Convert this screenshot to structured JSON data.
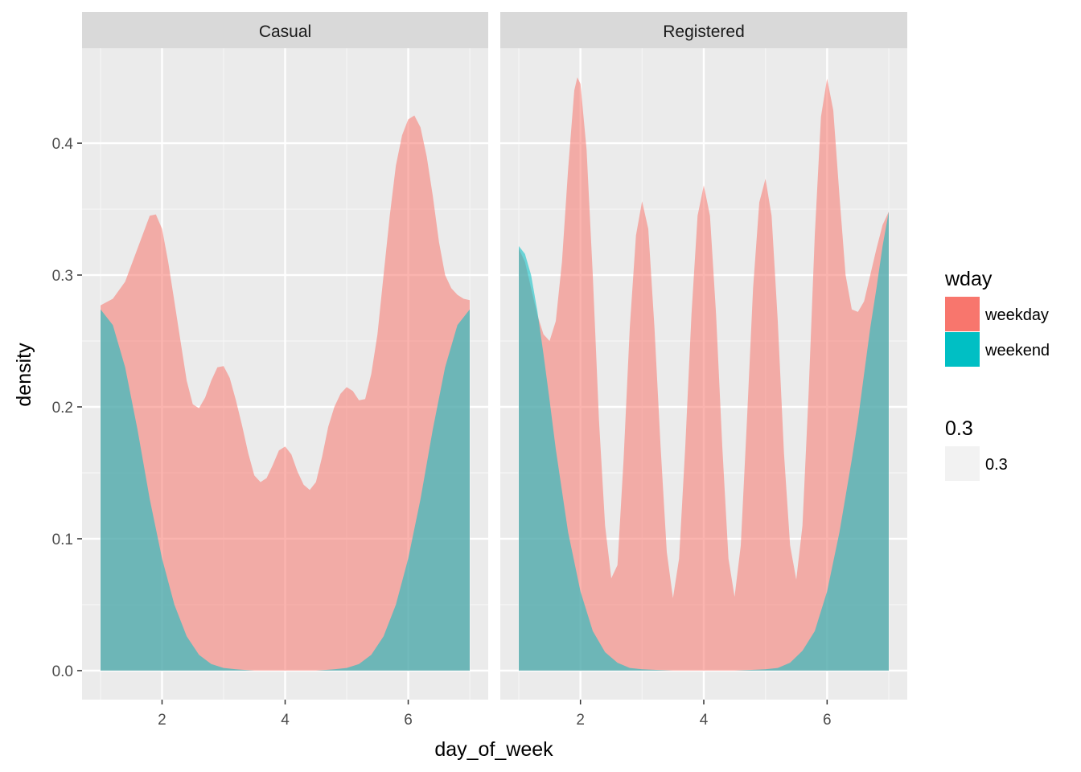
{
  "chart_data": {
    "type": "area",
    "kind": "faceted-density",
    "xlabel": "day_of_week",
    "ylabel": "density",
    "xlim": [
      0.7,
      7.3
    ],
    "ylim": [
      -0.022,
      0.472
    ],
    "x_ticks": [
      2,
      4,
      6
    ],
    "y_ticks": [
      0.0,
      0.1,
      0.2,
      0.3,
      0.4
    ],
    "y_tick_labels": [
      "0.0",
      "0.1",
      "0.2",
      "0.3",
      "0.4"
    ],
    "grid": true,
    "fill_alpha": 0.3,
    "colors": {
      "weekday": "#F8766D",
      "weekend": "#00BFC4"
    },
    "legend": {
      "position": "right",
      "groups": [
        {
          "title": "wday",
          "entries": [
            {
              "label": "weekday",
              "color": "#F8766D"
            },
            {
              "label": "weekend",
              "color": "#00BFC4"
            }
          ]
        },
        {
          "title": "0.3",
          "entries": [
            {
              "label": "0.3",
              "color": "#F2F2F2"
            }
          ]
        }
      ]
    },
    "panels": [
      {
        "strip": "Casual",
        "series": [
          {
            "name": "weekday",
            "points": [
              [
                1.0,
                0.277
              ],
              [
                1.2,
                0.282
              ],
              [
                1.4,
                0.295
              ],
              [
                1.6,
                0.32
              ],
              [
                1.8,
                0.345
              ],
              [
                1.9,
                0.346
              ],
              [
                2.0,
                0.335
              ],
              [
                2.1,
                0.31
              ],
              [
                2.2,
                0.28
              ],
              [
                2.3,
                0.25
              ],
              [
                2.4,
                0.22
              ],
              [
                2.5,
                0.202
              ],
              [
                2.6,
                0.199
              ],
              [
                2.7,
                0.207
              ],
              [
                2.8,
                0.22
              ],
              [
                2.9,
                0.23
              ],
              [
                3.0,
                0.231
              ],
              [
                3.1,
                0.222
              ],
              [
                3.2,
                0.205
              ],
              [
                3.3,
                0.186
              ],
              [
                3.4,
                0.165
              ],
              [
                3.5,
                0.148
              ],
              [
                3.6,
                0.143
              ],
              [
                3.7,
                0.146
              ],
              [
                3.8,
                0.156
              ],
              [
                3.9,
                0.167
              ],
              [
                4.0,
                0.17
              ],
              [
                4.1,
                0.164
              ],
              [
                4.2,
                0.151
              ],
              [
                4.3,
                0.141
              ],
              [
                4.4,
                0.137
              ],
              [
                4.5,
                0.143
              ],
              [
                4.6,
                0.162
              ],
              [
                4.7,
                0.185
              ],
              [
                4.8,
                0.2
              ],
              [
                4.9,
                0.21
              ],
              [
                5.0,
                0.215
              ],
              [
                5.1,
                0.212
              ],
              [
                5.2,
                0.205
              ],
              [
                5.3,
                0.206
              ],
              [
                5.4,
                0.225
              ],
              [
                5.5,
                0.255
              ],
              [
                5.6,
                0.3
              ],
              [
                5.7,
                0.345
              ],
              [
                5.8,
                0.383
              ],
              [
                5.9,
                0.406
              ],
              [
                6.0,
                0.418
              ],
              [
                6.1,
                0.421
              ],
              [
                6.2,
                0.412
              ],
              [
                6.3,
                0.39
              ],
              [
                6.4,
                0.36
              ],
              [
                6.5,
                0.325
              ],
              [
                6.6,
                0.3
              ],
              [
                6.7,
                0.29
              ],
              [
                6.8,
                0.285
              ],
              [
                6.9,
                0.282
              ],
              [
                7.0,
                0.281
              ]
            ]
          },
          {
            "name": "weekend",
            "points": [
              [
                1.0,
                0.274
              ],
              [
                1.2,
                0.262
              ],
              [
                1.4,
                0.23
              ],
              [
                1.6,
                0.183
              ],
              [
                1.8,
                0.13
              ],
              [
                2.0,
                0.085
              ],
              [
                2.2,
                0.05
              ],
              [
                2.4,
                0.026
              ],
              [
                2.6,
                0.012
              ],
              [
                2.8,
                0.005
              ],
              [
                3.0,
                0.002
              ],
              [
                3.2,
                0.001
              ],
              [
                3.5,
                0.0
              ],
              [
                4.0,
                0.0
              ],
              [
                4.5,
                0.0
              ],
              [
                4.8,
                0.001
              ],
              [
                5.0,
                0.002
              ],
              [
                5.2,
                0.005
              ],
              [
                5.4,
                0.012
              ],
              [
                5.6,
                0.026
              ],
              [
                5.8,
                0.05
              ],
              [
                6.0,
                0.085
              ],
              [
                6.2,
                0.13
              ],
              [
                6.4,
                0.183
              ],
              [
                6.6,
                0.23
              ],
              [
                6.8,
                0.262
              ],
              [
                7.0,
                0.274
              ]
            ]
          }
        ]
      },
      {
        "strip": "Registered",
        "series": [
          {
            "name": "weekday",
            "points": [
              [
                1.0,
                0.32
              ],
              [
                1.1,
                0.31
              ],
              [
                1.2,
                0.29
              ],
              [
                1.3,
                0.27
              ],
              [
                1.4,
                0.255
              ],
              [
                1.5,
                0.25
              ],
              [
                1.6,
                0.265
              ],
              [
                1.7,
                0.31
              ],
              [
                1.8,
                0.38
              ],
              [
                1.9,
                0.44
              ],
              [
                1.95,
                0.45
              ],
              [
                2.0,
                0.445
              ],
              [
                2.1,
                0.395
              ],
              [
                2.2,
                0.3
              ],
              [
                2.3,
                0.19
              ],
              [
                2.4,
                0.11
              ],
              [
                2.5,
                0.07
              ],
              [
                2.6,
                0.08
              ],
              [
                2.7,
                0.16
              ],
              [
                2.8,
                0.26
              ],
              [
                2.9,
                0.33
              ],
              [
                3.0,
                0.356
              ],
              [
                3.1,
                0.335
              ],
              [
                3.2,
                0.26
              ],
              [
                3.3,
                0.17
              ],
              [
                3.4,
                0.09
              ],
              [
                3.5,
                0.055
              ],
              [
                3.6,
                0.085
              ],
              [
                3.7,
                0.17
              ],
              [
                3.8,
                0.27
              ],
              [
                3.9,
                0.345
              ],
              [
                4.0,
                0.368
              ],
              [
                4.1,
                0.345
              ],
              [
                4.2,
                0.27
              ],
              [
                4.3,
                0.17
              ],
              [
                4.4,
                0.085
              ],
              [
                4.5,
                0.056
              ],
              [
                4.6,
                0.095
              ],
              [
                4.7,
                0.19
              ],
              [
                4.8,
                0.29
              ],
              [
                4.9,
                0.355
              ],
              [
                5.0,
                0.373
              ],
              [
                5.1,
                0.345
              ],
              [
                5.2,
                0.265
              ],
              [
                5.3,
                0.165
              ],
              [
                5.4,
                0.095
              ],
              [
                5.5,
                0.069
              ],
              [
                5.6,
                0.11
              ],
              [
                5.7,
                0.21
              ],
              [
                5.8,
                0.33
              ],
              [
                5.9,
                0.42
              ],
              [
                6.0,
                0.449
              ],
              [
                6.1,
                0.425
              ],
              [
                6.2,
                0.36
              ],
              [
                6.3,
                0.3
              ],
              [
                6.4,
                0.274
              ],
              [
                6.5,
                0.272
              ],
              [
                6.6,
                0.28
              ],
              [
                6.7,
                0.3
              ],
              [
                6.8,
                0.32
              ],
              [
                6.9,
                0.338
              ],
              [
                7.0,
                0.348
              ]
            ]
          },
          {
            "name": "weekend",
            "points": [
              [
                1.0,
                0.322
              ],
              [
                1.1,
                0.316
              ],
              [
                1.2,
                0.3
              ],
              [
                1.3,
                0.273
              ],
              [
                1.4,
                0.24
              ],
              [
                1.5,
                0.205
              ],
              [
                1.6,
                0.168
              ],
              [
                1.8,
                0.105
              ],
              [
                2.0,
                0.06
              ],
              [
                2.2,
                0.03
              ],
              [
                2.4,
                0.014
              ],
              [
                2.6,
                0.006
              ],
              [
                2.8,
                0.002
              ],
              [
                3.0,
                0.001
              ],
              [
                3.5,
                0.0
              ],
              [
                4.0,
                0.0
              ],
              [
                4.5,
                0.0
              ],
              [
                5.0,
                0.001
              ],
              [
                5.2,
                0.002
              ],
              [
                5.4,
                0.006
              ],
              [
                5.6,
                0.015
              ],
              [
                5.8,
                0.03
              ],
              [
                6.0,
                0.06
              ],
              [
                6.2,
                0.105
              ],
              [
                6.4,
                0.16
              ],
              [
                6.5,
                0.19
              ],
              [
                6.6,
                0.225
              ],
              [
                6.7,
                0.26
              ],
              [
                6.8,
                0.29
              ],
              [
                6.9,
                0.322
              ],
              [
                7.0,
                0.348
              ]
            ]
          }
        ]
      }
    ]
  }
}
